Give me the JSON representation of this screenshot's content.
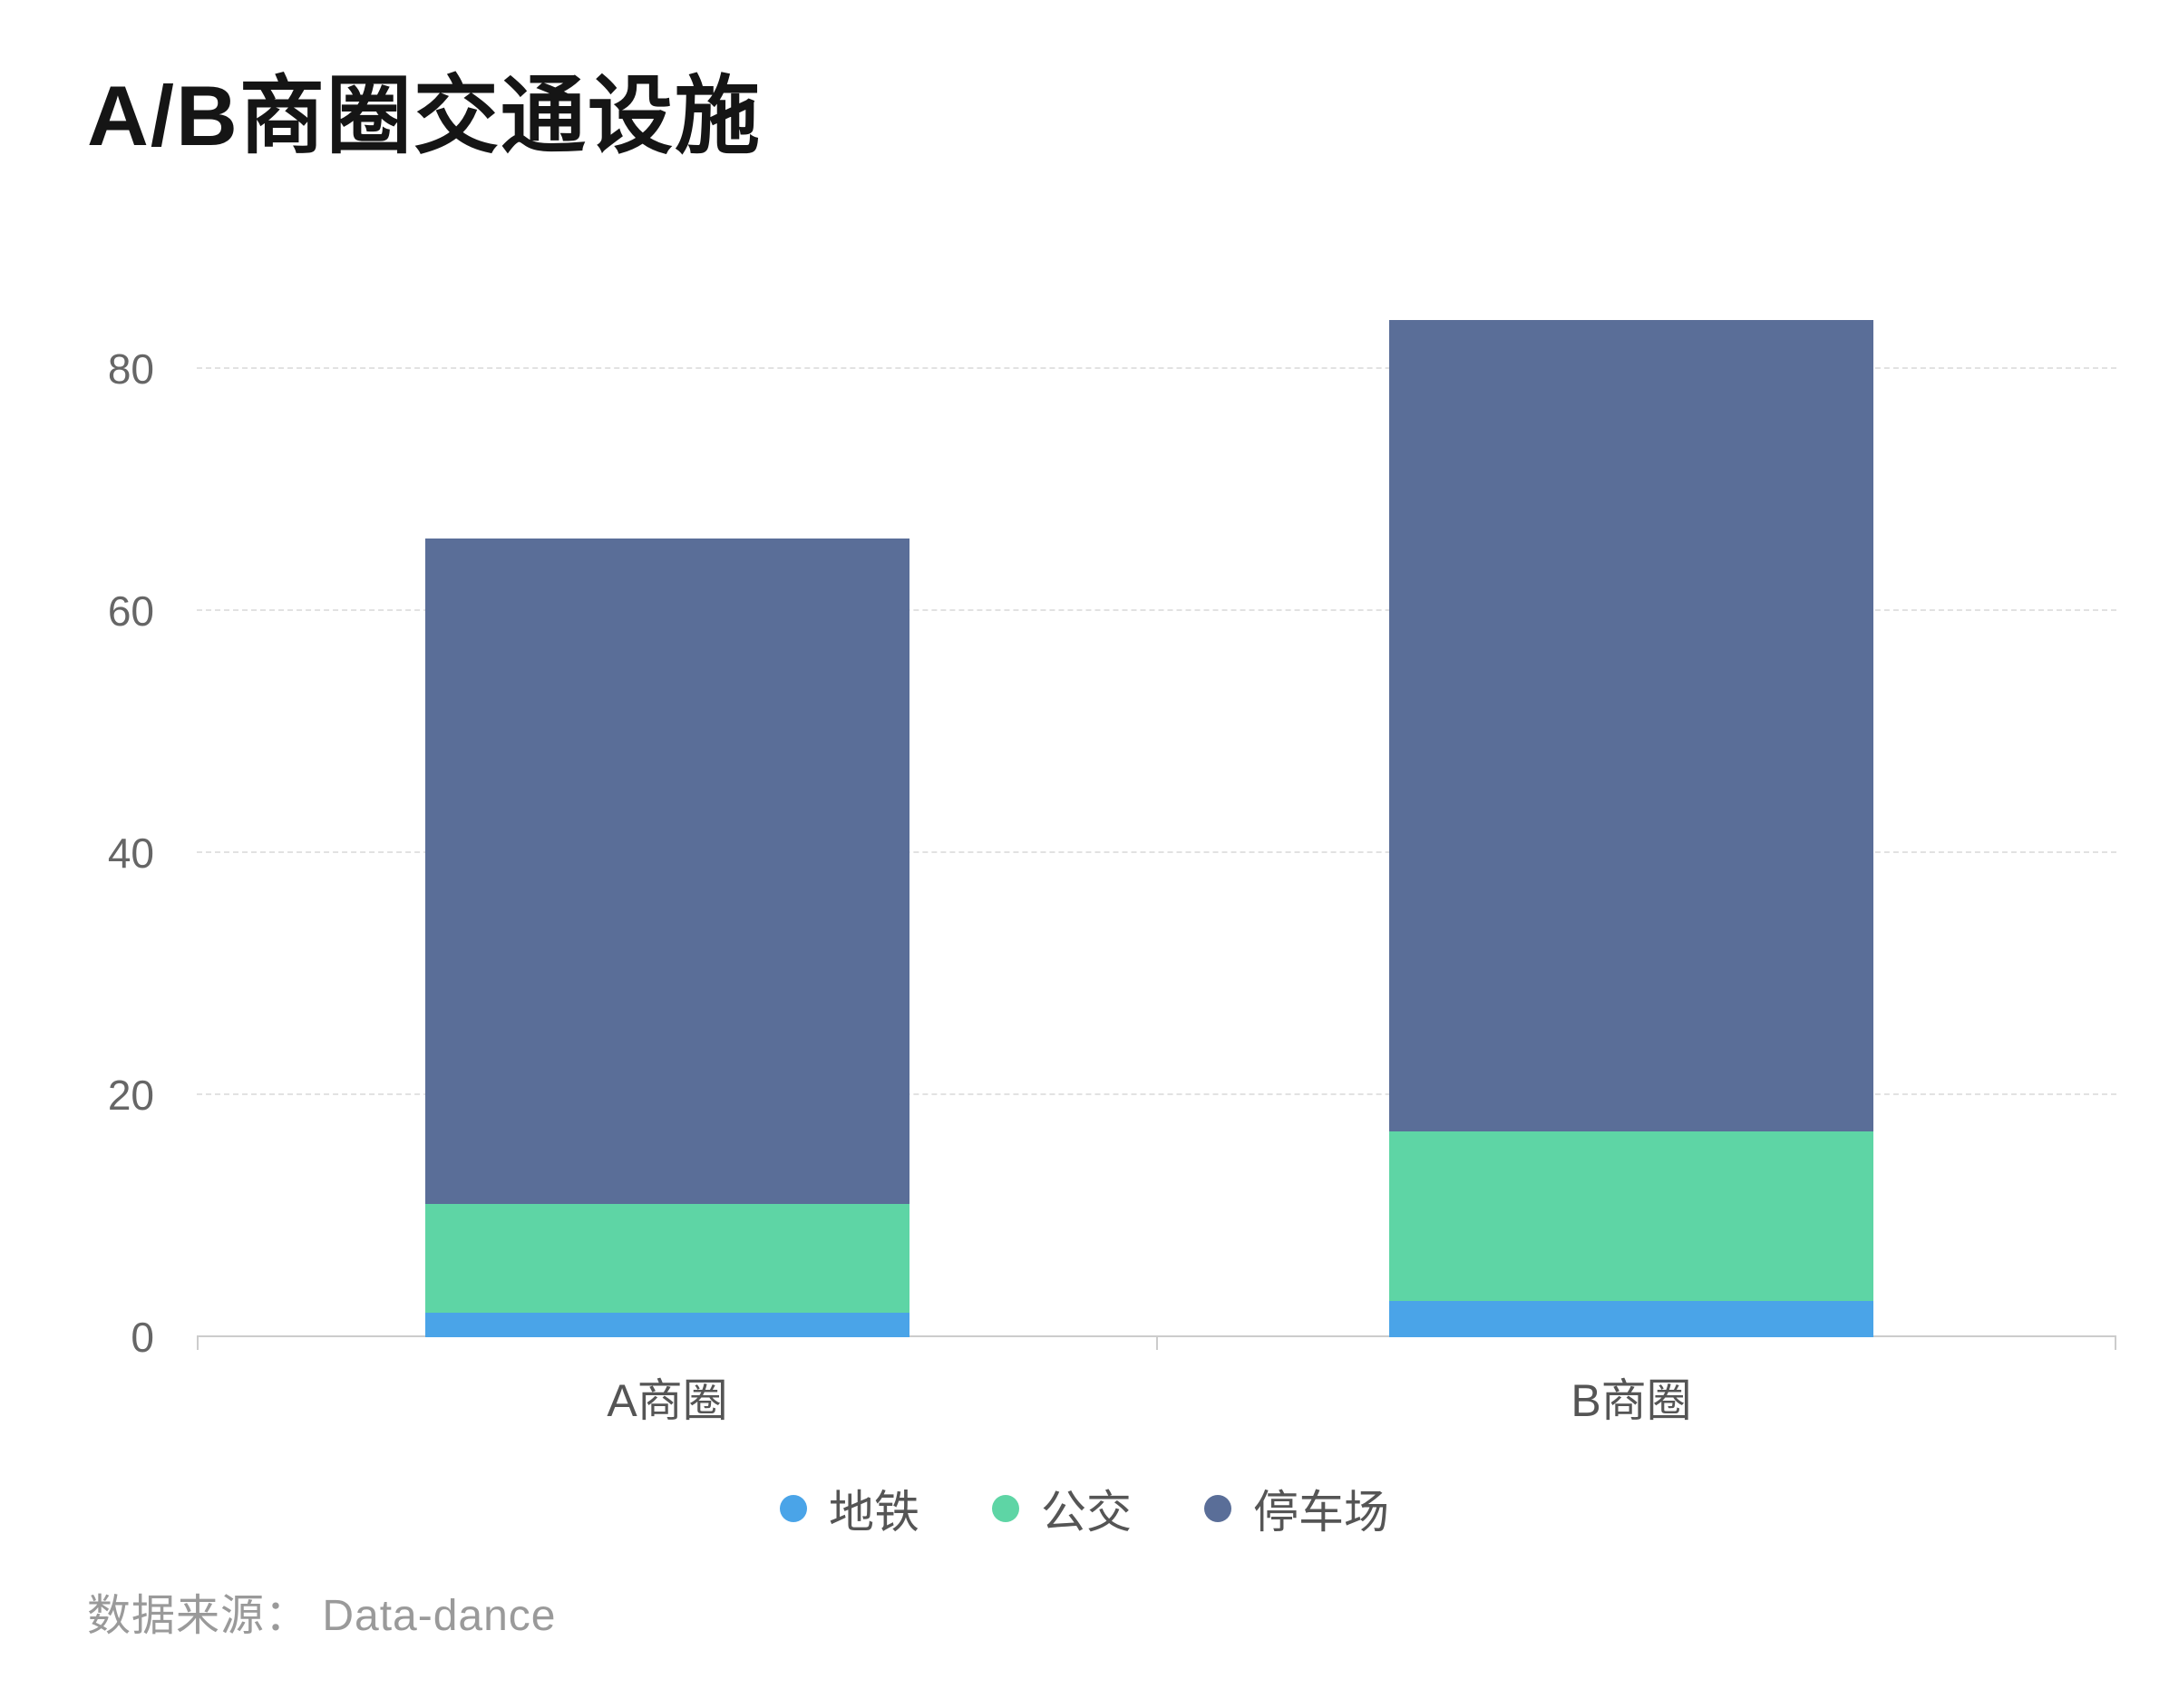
{
  "chart_data": {
    "type": "bar",
    "stacked": true,
    "title": "A/B商圈交通设施",
    "categories": [
      "A商圈",
      "B商圈"
    ],
    "series": [
      {
        "name": "地铁",
        "color": "#4aa4e8",
        "values": [
          2,
          3
        ]
      },
      {
        "name": "公交",
        "color": "#5ed5a5",
        "values": [
          9,
          14
        ]
      },
      {
        "name": "停车场",
        "color": "#5a6e98",
        "values": [
          55,
          67
        ]
      }
    ],
    "totals": [
      66,
      84
    ],
    "yticks": [
      0,
      20,
      40,
      60,
      80
    ],
    "ytick_labels": [
      "0",
      "20",
      "40",
      "60",
      "80"
    ],
    "ylim": [
      0,
      88
    ],
    "grid": "dashed horizontal",
    "legend_position": "bottom-center",
    "source": "数据来源： Data-dance"
  }
}
